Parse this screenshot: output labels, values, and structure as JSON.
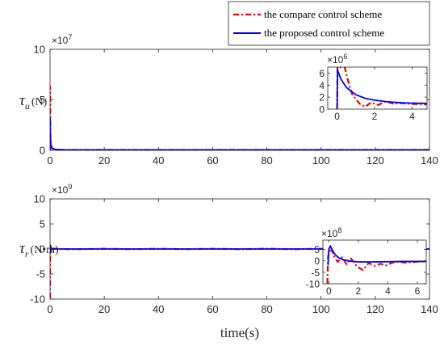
{
  "legend": {
    "location": "top-right",
    "entries": [
      {
        "label": "the compare control scheme",
        "color": "#e8000b",
        "style": "dash-dot"
      },
      {
        "label": "the proposed control scheme",
        "color": "#0000ff",
        "style": "solid"
      }
    ]
  },
  "xlabel": "time(s)",
  "chart_data": [
    {
      "type": "line",
      "ylabel_symbol": "τ",
      "ylabel_sub": "u",
      "ylabel_unit": "(N)",
      "multiplier": "×10",
      "multiplier_exp": "7",
      "xlim": [
        0,
        140
      ],
      "ylim": [
        0,
        10
      ],
      "xticks": [
        "0",
        "20",
        "40",
        "60",
        "80",
        "100",
        "120",
        "140"
      ],
      "yticks": [
        "0",
        "5",
        "10"
      ],
      "series": [
        {
          "name": "the compare control scheme",
          "color": "#e8000b",
          "x": [
            0,
            0.05,
            0.1,
            0.3,
            0.6,
            1.0,
            2.0,
            5,
            20,
            60,
            100,
            140
          ],
          "y": [
            0,
            6.3,
            2.0,
            0.5,
            0.25,
            0.15,
            0.08,
            0.05,
            0.05,
            0.05,
            0.05,
            0.05
          ]
        },
        {
          "name": "the proposed control scheme",
          "color": "#0000ff",
          "x": [
            0,
            0.05,
            0.1,
            0.3,
            0.6,
            1.0,
            2.0,
            5,
            20,
            60,
            100,
            140
          ],
          "y": [
            0,
            3.2,
            1.5,
            0.6,
            0.3,
            0.18,
            0.1,
            0.06,
            0.05,
            0.05,
            0.05,
            0.05
          ]
        }
      ],
      "inset": {
        "multiplier": "×10",
        "multiplier_exp": "6",
        "xlim": [
          -0.5,
          4.8
        ],
        "ylim": [
          0,
          7
        ],
        "xticks": [
          "0",
          "2",
          "4"
        ],
        "yticks": [
          "0",
          "2",
          "4",
          "6"
        ],
        "series": [
          {
            "name": "the compare control scheme",
            "color": "#e8000b",
            "x": [
              0,
              0.02,
              0.4,
              0.6,
              0.8,
              1.2,
              1.5,
              1.8,
              2.2,
              2.6,
              3.0,
              3.4,
              4.0,
              4.8
            ],
            "y": [
              0,
              7,
              7,
              4.5,
              2.5,
              0.9,
              0.4,
              1.1,
              0.7,
              1.3,
              0.9,
              1.0,
              0.85,
              0.8
            ]
          },
          {
            "name": "the proposed control scheme",
            "color": "#0000ff",
            "x": [
              0,
              0.02,
              0.2,
              0.5,
              1.0,
              1.5,
              2.0,
              2.5,
              3.0,
              3.5,
              4.0,
              4.8
            ],
            "y": [
              0,
              6.5,
              5.0,
              3.6,
              2.4,
              1.8,
              1.5,
              1.3,
              1.15,
              1.05,
              1.0,
              0.95
            ]
          }
        ]
      }
    },
    {
      "type": "line",
      "ylabel_symbol": "τ",
      "ylabel_sub": "r",
      "ylabel_unit": "(N•m)",
      "multiplier": "×10",
      "multiplier_exp": "9",
      "xlim": [
        0,
        140
      ],
      "ylim": [
        -10,
        10
      ],
      "xticks": [
        "0",
        "20",
        "40",
        "60",
        "80",
        "100",
        "120",
        "140"
      ],
      "yticks": [
        "-10",
        "-5",
        "0",
        "5",
        "10"
      ],
      "series": [
        {
          "name": "the compare control scheme",
          "color": "#e8000b",
          "x": [
            0,
            0.05,
            0.2,
            0.5,
            1,
            3,
            10,
            20,
            30,
            40,
            50,
            60,
            70,
            80,
            90,
            100,
            110,
            120,
            130,
            140
          ],
          "y": [
            -9.8,
            -2,
            0.6,
            -0.5,
            0.1,
            0,
            -0.05,
            0.05,
            -0.05,
            0.05,
            -0.05,
            0.05,
            -0.05,
            0.05,
            -0.05,
            0.05,
            -0.05,
            0.05,
            -0.05,
            0
          ]
        },
        {
          "name": "the proposed control scheme",
          "color": "#0000ff",
          "x": [
            0,
            0.05,
            0.2,
            0.5,
            1,
            3,
            10,
            140
          ],
          "y": [
            -1.0,
            0.8,
            0.3,
            -0.1,
            0,
            0,
            0,
            0
          ]
        }
      ],
      "inset": {
        "multiplier": "×10",
        "multiplier_exp": "8",
        "xlim": [
          -0.4,
          6.6
        ],
        "ylim": [
          -10,
          9
        ],
        "xticks": [
          "0",
          "2",
          "4",
          "6"
        ],
        "yticks": [
          "-10",
          "-5",
          "0",
          "5"
        ],
        "series": [
          {
            "name": "the compare control scheme",
            "color": "#e8000b",
            "x": [
              -0.1,
              -0.05,
              0,
              0.15,
              0.35,
              0.6,
              0.9,
              1.2,
              1.5,
              1.9,
              2.3,
              2.7,
              3.1,
              3.5,
              3.9,
              4.3,
              4.7,
              5.2,
              5.7,
              6.2,
              6.6
            ],
            "y": [
              -10,
              2,
              3,
              5.5,
              2,
              -0.5,
              1.5,
              -1.5,
              1.0,
              -2.5,
              -4,
              -1,
              -2.2,
              -1.3,
              -2.0,
              -0.8,
              -0.4,
              -0.8,
              -0.5,
              -0.3,
              -0.3
            ]
          },
          {
            "name": "the proposed control scheme",
            "color": "#0000ff",
            "x": [
              -0.05,
              0,
              0.1,
              0.25,
              0.45,
              0.7,
              1.0,
              1.5,
              2.0,
              3.0,
              4.0,
              5.0,
              6.6
            ],
            "y": [
              -2,
              5,
              6.5,
              4.5,
              2.5,
              1.2,
              0.4,
              -0.2,
              -0.5,
              -0.5,
              -0.4,
              -0.3,
              -0.3
            ]
          }
        ]
      }
    }
  ]
}
